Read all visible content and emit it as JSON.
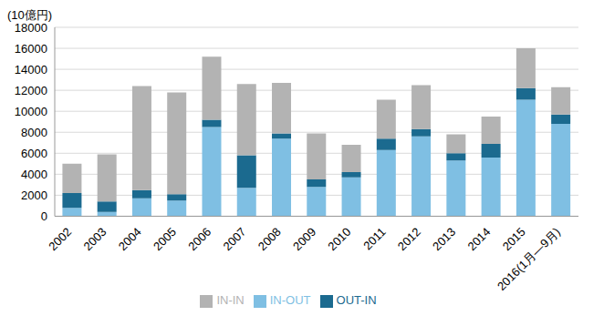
{
  "chart_data": {
    "type": "bar",
    "stacked": true,
    "y_label": "(10億円)",
    "categories": [
      "2002",
      "2003",
      "2004",
      "2005",
      "2006",
      "2007",
      "2008",
      "2009",
      "2010",
      "2011",
      "2012",
      "2013",
      "2014",
      "2015",
      "2016(1月―9月)"
    ],
    "series": [
      {
        "name": "IN-OUT",
        "color": "#7fbfe3",
        "values": [
          800,
          400,
          1700,
          1500,
          8500,
          2700,
          7400,
          2800,
          3700,
          6300,
          7600,
          5300,
          5600,
          11100,
          8800
        ]
      },
      {
        "name": "OUT-IN",
        "color": "#1b6a8f",
        "values": [
          1400,
          1000,
          800,
          600,
          700,
          3100,
          500,
          700,
          500,
          1100,
          700,
          700,
          1300,
          1100,
          900
        ]
      },
      {
        "name": "IN-IN",
        "color": "#b3b3b3",
        "values": [
          2800,
          4500,
          9900,
          9700,
          6000,
          6800,
          4800,
          4400,
          2600,
          3700,
          4200,
          1800,
          2600,
          3800,
          2600
        ]
      }
    ],
    "ylim": [
      0,
      18000
    ],
    "yticks": [
      0,
      2000,
      4000,
      6000,
      8000,
      10000,
      12000,
      14000,
      16000,
      18000
    ],
    "grid": true,
    "legend": "bottom"
  }
}
